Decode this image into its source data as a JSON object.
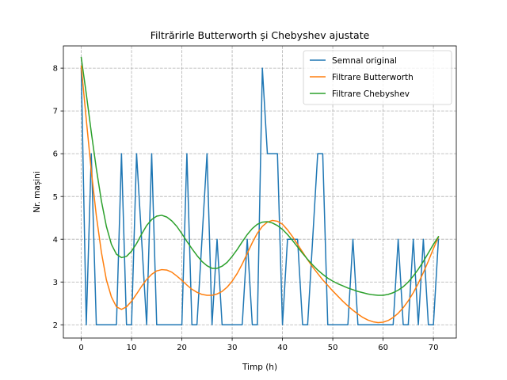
{
  "chart_data": {
    "type": "line",
    "title": "Filtrărirle Butterworth și Chebyshev ajustate",
    "xlabel": "Timp (h)",
    "ylabel": "Nr. mașini",
    "xlim": [
      -3.55,
      74.55
    ],
    "ylim": [
      1.69,
      8.52
    ],
    "xticks": [
      0,
      10,
      20,
      30,
      40,
      50,
      60,
      70
    ],
    "yticks": [
      2,
      3,
      4,
      5,
      6,
      7,
      8
    ],
    "grid": true,
    "legend_position": "top-right",
    "series": [
      {
        "name": "Semnal original",
        "color": "#1f77b4",
        "x": [
          0,
          1,
          2,
          3,
          4,
          5,
          6,
          7,
          8,
          9,
          10,
          11,
          12,
          13,
          14,
          15,
          16,
          17,
          18,
          19,
          20,
          21,
          22,
          23,
          24,
          25,
          26,
          27,
          28,
          29,
          30,
          31,
          32,
          33,
          34,
          35,
          36,
          37,
          38,
          39,
          40,
          41,
          42,
          43,
          44,
          45,
          46,
          47,
          48,
          49,
          50,
          51,
          52,
          53,
          54,
          55,
          56,
          57,
          58,
          59,
          60,
          61,
          62,
          63,
          64,
          65,
          66,
          67,
          68,
          69,
          70,
          71
        ],
        "y": [
          8,
          2,
          6,
          2,
          2,
          2,
          2,
          2,
          6,
          2,
          2,
          6,
          4,
          2,
          6,
          2,
          2,
          2,
          2,
          2,
          2,
          6,
          2,
          2,
          4,
          6,
          2,
          4,
          2,
          2,
          2,
          2,
          2,
          4,
          2,
          2,
          8,
          6,
          6,
          6,
          2,
          4,
          4,
          4,
          2,
          2,
          4,
          6,
          6,
          2,
          2,
          2,
          2,
          2,
          4,
          2,
          2,
          2,
          2,
          2,
          2,
          2,
          2,
          4,
          2,
          2,
          4,
          2,
          4,
          2,
          2,
          4
        ]
      },
      {
        "name": "Filtrare Butterworth",
        "color": "#ff7f0e",
        "x": [
          0,
          1,
          2,
          3,
          4,
          5,
          6,
          7,
          8,
          9,
          10,
          11,
          12,
          13,
          14,
          15,
          16,
          17,
          18,
          19,
          20,
          21,
          22,
          23,
          24,
          25,
          26,
          27,
          28,
          29,
          30,
          31,
          32,
          33,
          34,
          35,
          36,
          37,
          38,
          39,
          40,
          41,
          42,
          43,
          44,
          45,
          46,
          47,
          48,
          49,
          50,
          51,
          52,
          53,
          54,
          55,
          56,
          57,
          58,
          59,
          60,
          61,
          62,
          63,
          64,
          65,
          66,
          67,
          68,
          69,
          70,
          71
        ],
        "y": [
          8.05,
          6.8,
          5.6,
          4.55,
          3.7,
          3.05,
          2.65,
          2.42,
          2.36,
          2.42,
          2.55,
          2.72,
          2.9,
          3.06,
          3.18,
          3.26,
          3.29,
          3.28,
          3.23,
          3.14,
          3.04,
          2.93,
          2.83,
          2.76,
          2.71,
          2.69,
          2.69,
          2.72,
          2.78,
          2.88,
          3.02,
          3.2,
          3.42,
          3.67,
          3.92,
          4.14,
          4.3,
          4.4,
          4.44,
          4.42,
          4.35,
          4.22,
          4.06,
          3.88,
          3.7,
          3.52,
          3.35,
          3.2,
          3.05,
          2.92,
          2.79,
          2.67,
          2.55,
          2.44,
          2.34,
          2.25,
          2.17,
          2.11,
          2.07,
          2.05,
          2.06,
          2.1,
          2.17,
          2.27,
          2.4,
          2.56,
          2.75,
          2.97,
          3.22,
          3.49,
          3.78,
          4.05
        ]
      },
      {
        "name": "Filtrare Chebyshev",
        "color": "#2ca02c",
        "x": [
          0,
          1,
          2,
          3,
          4,
          5,
          6,
          7,
          8,
          9,
          10,
          11,
          12,
          13,
          14,
          15,
          16,
          17,
          18,
          19,
          20,
          21,
          22,
          23,
          24,
          25,
          26,
          27,
          28,
          29,
          30,
          31,
          32,
          33,
          34,
          35,
          36,
          37,
          38,
          39,
          40,
          41,
          42,
          43,
          44,
          45,
          46,
          47,
          48,
          49,
          50,
          51,
          52,
          53,
          54,
          55,
          56,
          57,
          58,
          59,
          60,
          61,
          62,
          63,
          64,
          65,
          66,
          67,
          68,
          69,
          70,
          71
        ],
        "y": [
          8.25,
          7.4,
          6.5,
          5.65,
          4.9,
          4.3,
          3.88,
          3.65,
          3.57,
          3.6,
          3.72,
          3.9,
          4.12,
          4.32,
          4.46,
          4.54,
          4.56,
          4.52,
          4.43,
          4.3,
          4.13,
          3.95,
          3.78,
          3.62,
          3.48,
          3.38,
          3.32,
          3.32,
          3.37,
          3.46,
          3.6,
          3.76,
          3.94,
          4.11,
          4.25,
          4.35,
          4.4,
          4.41,
          4.38,
          4.32,
          4.23,
          4.11,
          3.97,
          3.82,
          3.67,
          3.53,
          3.4,
          3.28,
          3.18,
          3.09,
          3.02,
          2.96,
          2.91,
          2.86,
          2.82,
          2.78,
          2.75,
          2.72,
          2.7,
          2.69,
          2.69,
          2.71,
          2.75,
          2.81,
          2.89,
          3.0,
          3.14,
          3.3,
          3.48,
          3.68,
          3.88,
          4.06
        ]
      }
    ]
  }
}
